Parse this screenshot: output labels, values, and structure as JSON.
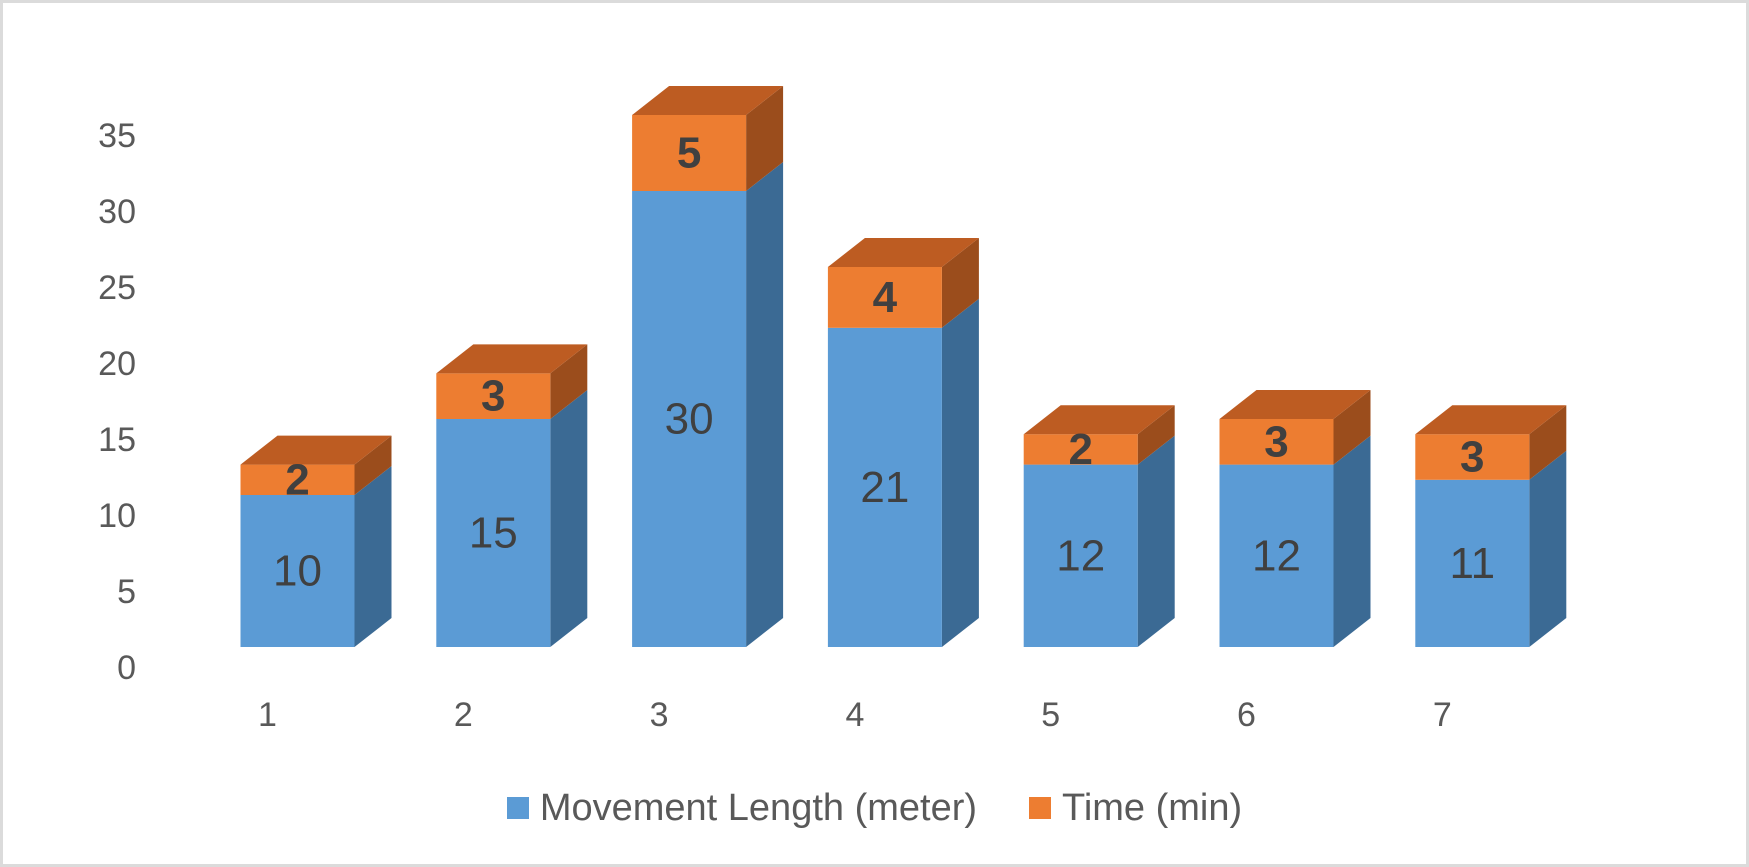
{
  "chart_data": {
    "type": "bar",
    "subtype": "3d-stacked-column",
    "title": "",
    "xlabel": "",
    "ylabel": "",
    "categories": [
      "1",
      "2",
      "3",
      "4",
      "5",
      "6",
      "7"
    ],
    "series": [
      {
        "name": "Movement Length (meter)",
        "values": [
          10,
          15,
          30,
          21,
          12,
          12,
          11
        ],
        "front_color": "#5B9BD5",
        "side_color": "#3B6A94",
        "label_weight": "normal"
      },
      {
        "name": "Time (min)",
        "values": [
          2,
          3,
          5,
          4,
          2,
          3,
          3
        ],
        "front_color": "#ED7D31",
        "side_color": "#9B4D1C",
        "top_color": "#BD5C22",
        "label_weight": "bold"
      }
    ],
    "yticks": [
      0,
      5,
      10,
      15,
      20,
      25,
      30,
      35
    ],
    "ylim": [
      0,
      35
    ],
    "grid": false,
    "legend_position": "bottom",
    "colors": {
      "data_label": "#404040",
      "axis_label": "#595959",
      "background": "#FFFFFF",
      "frame_border": "#DBDBDB"
    }
  }
}
